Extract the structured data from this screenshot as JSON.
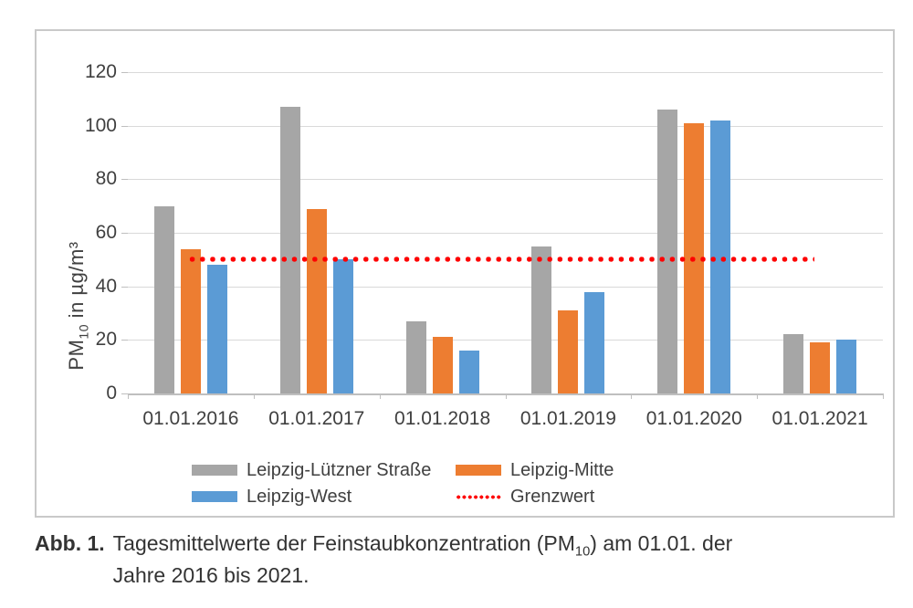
{
  "figure": {
    "caption": {
      "label": "Abb. 1.",
      "line1_pre": "Tagesmittelwerte der Feinstaubkonzentration (PM",
      "line1_sub": "10",
      "line1_post": ") am 01.01. der",
      "line2": "Jahre 2016 bis 2021."
    }
  },
  "chart_data": {
    "type": "bar",
    "categories": [
      "01.01.2016",
      "01.01.2017",
      "01.01.2018",
      "01.01.2019",
      "01.01.2020",
      "01.01.2021"
    ],
    "series": [
      {
        "name": "Leipzig-Lützner Straße",
        "color": "#a6a6a6",
        "values": [
          70,
          107,
          27,
          55,
          106,
          22
        ]
      },
      {
        "name": "Leipzig-Mitte",
        "color": "#ed7d31",
        "values": [
          54,
          69,
          21,
          31,
          101,
          19
        ]
      },
      {
        "name": "Leipzig-West",
        "color": "#5b9bd5",
        "values": [
          48,
          50,
          16,
          38,
          102,
          20
        ]
      }
    ],
    "reference_line": {
      "name": "Grenzwert",
      "value": 50,
      "color": "#fe0000",
      "style": "dotted"
    },
    "ylabel": {
      "pre": "PM",
      "sub": "10",
      "post": " in µg/m³"
    },
    "ylim": [
      0,
      120
    ],
    "ytick_step": 20,
    "xlabel": "",
    "grid": true,
    "legend_position": "bottom-inside"
  }
}
